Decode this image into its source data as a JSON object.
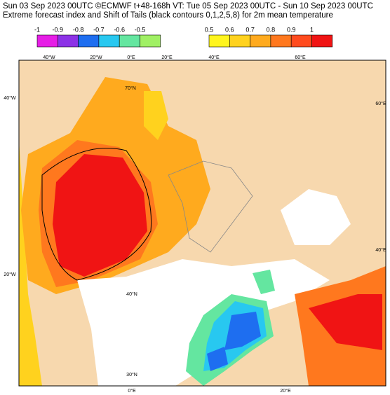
{
  "header": {
    "line1": "Sun 03 Sep 2023 00UTC ©ECMWF t+48-168h  VT: Tue 05 Sep 2023 00UTC - Sun 10 Sep 2023 00UTC",
    "line2": "Extreme forecast index and Shift of Tails (black contours 0,1,2,5,8) for 2m mean temperature"
  },
  "colorbars": [
    {
      "ticks": [
        -1,
        -0.9,
        -0.8,
        -0.7,
        -0.6,
        -0.5
      ],
      "colors": [
        "#e61ee6",
        "#8c32e6",
        "#1e6ef0",
        "#28c8f0",
        "#64e6a0",
        "#a0f064"
      ]
    },
    {
      "ticks": [
        0.5,
        0.6,
        0.7,
        0.8,
        0.9,
        1
      ],
      "colors": [
        "#fff51e",
        "#ffd21e",
        "#ffaa1e",
        "#ff781e",
        "#ff4b1e",
        "#f01414"
      ]
    }
  ],
  "map_labels": {
    "top": [
      "40°W",
      "20°W",
      "0°E",
      "20°E",
      "40°E",
      "60°E"
    ],
    "left": [
      "40°W",
      "20°W"
    ],
    "right": [
      "60°E",
      "40°E"
    ],
    "inner": [
      "70°N",
      "40°N",
      "30°N"
    ],
    "bottom": [
      "0°E",
      "20°E"
    ]
  }
}
